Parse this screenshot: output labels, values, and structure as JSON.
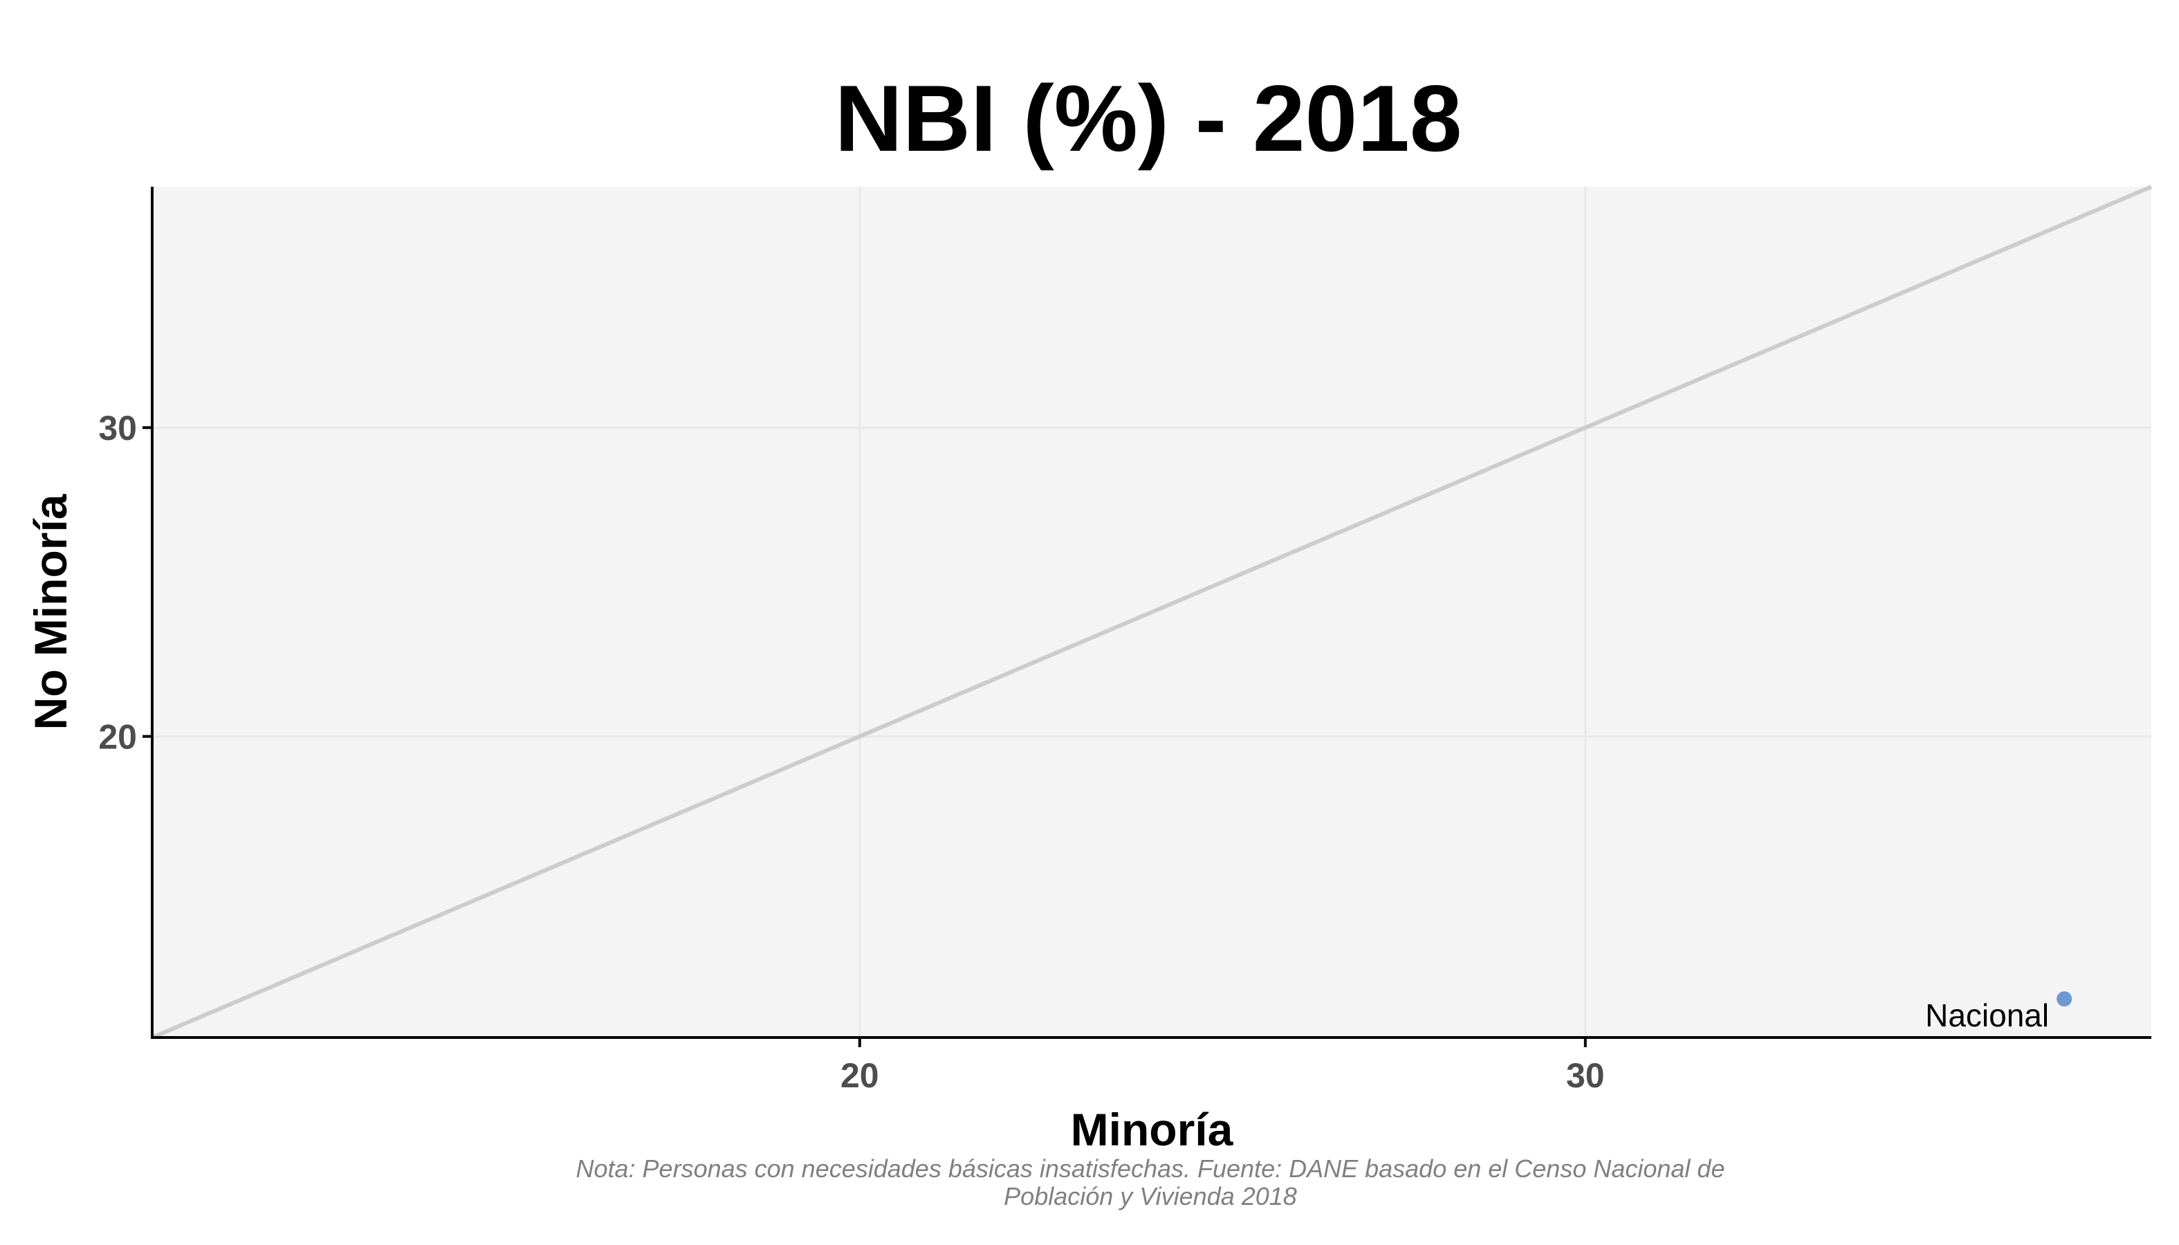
{
  "chart_data": {
    "type": "scatter",
    "title": "NBI (%) - 2018",
    "xlabel": "Minoría",
    "ylabel": "No Minoría",
    "xlim": [
      10.25,
      37.8
    ],
    "ylim": [
      10.25,
      37.8
    ],
    "x_ticks": [
      20,
      30
    ],
    "y_ticks": [
      20,
      30
    ],
    "grid": true,
    "reference_line": {
      "type": "identity",
      "label": "y = x",
      "color": "#cccccc"
    },
    "points": [
      {
        "label": "Nacional",
        "x": 36.6,
        "y": 11.5,
        "color": "#6f97d3"
      }
    ],
    "caption": [
      "Nota: Personas con necesidades básicas insatisfechas. Fuente: DANE basado en el Censo Nacional de",
      "Población y Vivienda 2018"
    ],
    "colors": {
      "panel": "#f4f4f4",
      "grid": "#e8e8e8",
      "axis": "#000000"
    }
  }
}
